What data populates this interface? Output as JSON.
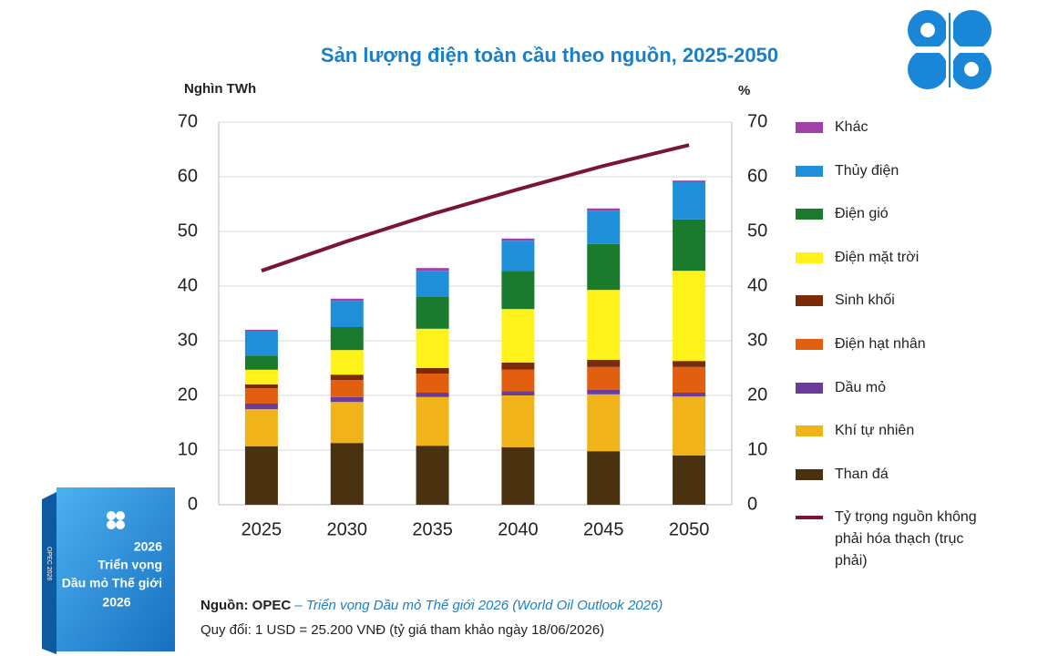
{
  "chart_data": {
    "type": "bar",
    "stacked": true,
    "title": "Sản lượng điện toàn cầu theo nguồn, 2025-2050",
    "y_label": "Nghìn TWh",
    "y2_label": "%",
    "categories": [
      "2025",
      "2030",
      "2035",
      "2040",
      "2045",
      "2050"
    ],
    "ylim": [
      0,
      70
    ],
    "yticks": [
      0,
      10,
      20,
      30,
      40,
      50,
      60,
      70
    ],
    "y2lim": [
      0,
      70
    ],
    "y2ticks": [
      0,
      10,
      20,
      30,
      40,
      50,
      60,
      70
    ],
    "grid": true,
    "series": [
      {
        "name": "Than đá",
        "color": "#4a3210",
        "values": [
          10.7,
          11.3,
          10.8,
          10.5,
          9.8,
          9.0
        ]
      },
      {
        "name": "Khí tự nhiên",
        "color": "#f0b41a",
        "values": [
          6.8,
          7.5,
          8.9,
          9.5,
          10.4,
          10.8
        ]
      },
      {
        "name": "Dầu mỏ",
        "color": "#6a3d9a",
        "values": [
          1.0,
          0.9,
          0.8,
          0.8,
          0.8,
          0.7
        ]
      },
      {
        "name": "Điện hạt nhân",
        "color": "#e35f10",
        "values": [
          2.8,
          3.1,
          3.5,
          3.9,
          4.2,
          4.7
        ]
      },
      {
        "name": "Sinh khối",
        "color": "#7b2a0a",
        "values": [
          0.7,
          1.0,
          1.0,
          1.3,
          1.3,
          1.1
        ]
      },
      {
        "name": "Điện mặt trời",
        "color": "#fff21a",
        "values": [
          2.7,
          4.5,
          7.2,
          9.8,
          12.8,
          16.5
        ]
      },
      {
        "name": "Điện gió",
        "color": "#1a7a2e",
        "values": [
          2.6,
          4.2,
          5.8,
          7.0,
          8.4,
          9.4
        ]
      },
      {
        "name": "Thủy điện",
        "color": "#1e8fd8",
        "values": [
          4.4,
          4.8,
          4.8,
          5.5,
          6.1,
          6.8
        ]
      },
      {
        "name": "Khác",
        "color": "#a040a8",
        "values": [
          0.3,
          0.4,
          0.5,
          0.4,
          0.4,
          0.3
        ]
      },
      {
        "name": "Tỷ trọng nguồn không phải hóa thạch (trục phải)",
        "type": "line",
        "axis": "y2",
        "color": "#7a1535",
        "values": [
          42.8,
          48.2,
          53.2,
          57.7,
          62.0,
          65.8
        ]
      }
    ],
    "source_org": "Nguồn: OPEC",
    "source_pub": "– Triển vọng Dầu mỏ Thế giới 2026 (World Oil Outlook 2026)",
    "note": "Quy đổi: 1 USD = 25.200 VNĐ (tỷ giá tham khảo ngày 18/06/2026)"
  },
  "book": {
    "year": "2026",
    "title_1": "Triển vọng",
    "title_2": "Dầu mỏ Thế giới",
    "year_2": "2026",
    "spine": "OPEC 2026"
  }
}
